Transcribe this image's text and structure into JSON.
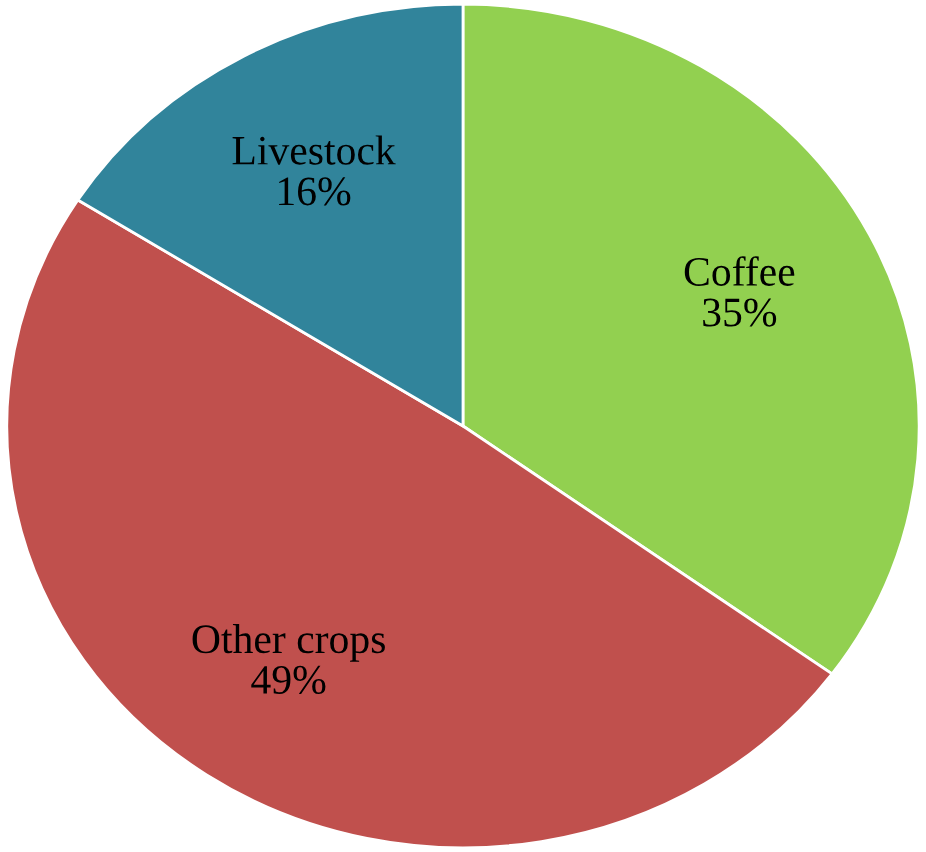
{
  "chart_data": {
    "type": "pie",
    "categories": [
      "Coffee",
      "Other crops",
      "Livestock"
    ],
    "values": [
      35,
      49,
      16
    ],
    "colors": [
      "#92d050",
      "#c0504d",
      "#31849b"
    ],
    "value_labels": [
      "35%",
      "49%",
      "16%"
    ],
    "legend": false
  }
}
